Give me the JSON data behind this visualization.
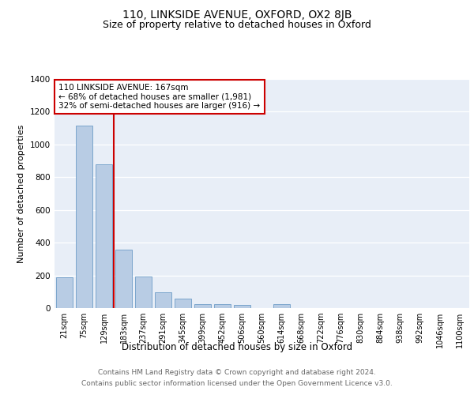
{
  "title": "110, LINKSIDE AVENUE, OXFORD, OX2 8JB",
  "subtitle": "Size of property relative to detached houses in Oxford",
  "xlabel": "Distribution of detached houses by size in Oxford",
  "ylabel": "Number of detached properties",
  "categories": [
    "21sqm",
    "75sqm",
    "129sqm",
    "183sqm",
    "237sqm",
    "291sqm",
    "345sqm",
    "399sqm",
    "452sqm",
    "506sqm",
    "560sqm",
    "614sqm",
    "668sqm",
    "722sqm",
    "776sqm",
    "830sqm",
    "884sqm",
    "938sqm",
    "992sqm",
    "1046sqm",
    "1100sqm"
  ],
  "values": [
    190,
    1115,
    880,
    355,
    195,
    98,
    58,
    25,
    22,
    20,
    0,
    25,
    0,
    0,
    0,
    0,
    0,
    0,
    0,
    0,
    0
  ],
  "bar_color": "#b8cce4",
  "bar_edge_color": "#5a8fc0",
  "vline_x": 2.5,
  "vline_color": "#cc0000",
  "annotation_line1": "110 LINKSIDE AVENUE: 167sqm",
  "annotation_line2": "← 68% of detached houses are smaller (1,981)",
  "annotation_line3": "32% of semi-detached houses are larger (916) →",
  "annotation_box_color": "#ffffff",
  "annotation_box_edge": "#cc0000",
  "ylim": [
    0,
    1400
  ],
  "yticks": [
    0,
    200,
    400,
    600,
    800,
    1000,
    1200,
    1400
  ],
  "background_color": "#e8eef7",
  "footer_line1": "Contains HM Land Registry data © Crown copyright and database right 2024.",
  "footer_line2": "Contains public sector information licensed under the Open Government Licence v3.0.",
  "title_fontsize": 10,
  "subtitle_fontsize": 9,
  "xlabel_fontsize": 8.5,
  "ylabel_fontsize": 8,
  "tick_fontsize": 7,
  "ytick_fontsize": 7.5,
  "annotation_fontsize": 7.5,
  "footer_fontsize": 6.5
}
